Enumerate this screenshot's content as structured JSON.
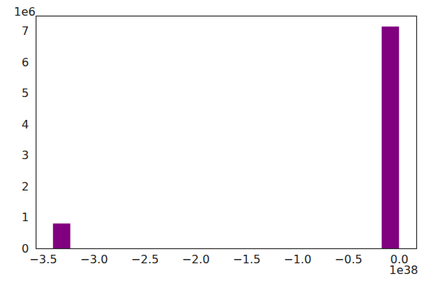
{
  "chart_data": {
    "type": "histogram",
    "bins": [
      -3.4,
      -3.23,
      -3.06,
      -2.89,
      -2.72,
      -2.55,
      -2.38,
      -2.21,
      -2.04,
      -1.87,
      -1.7,
      -1.53,
      -1.36,
      -1.19,
      -1.02,
      -0.85,
      -0.68,
      -0.51,
      -0.34,
      -0.17,
      0
    ],
    "values": [
      0.8,
      0,
      0,
      0,
      0,
      0,
      0,
      0,
      0,
      0,
      0,
      0,
      0,
      0,
      0,
      0,
      0,
      0,
      0,
      7.15
    ],
    "color": "#800080",
    "xlim": [
      -3.57,
      0.17
    ],
    "xticks": [
      {
        "value": -3.5,
        "label": "−3.5"
      },
      {
        "value": -3.0,
        "label": "−3.0"
      },
      {
        "value": -2.5,
        "label": "−2.5"
      },
      {
        "value": -2.0,
        "label": "−2.0"
      },
      {
        "value": -1.5,
        "label": "−1.5"
      },
      {
        "value": -1.0,
        "label": "−1.0"
      },
      {
        "value": -0.5,
        "label": "−0.5"
      },
      {
        "value": 0,
        "label": "0.0"
      }
    ],
    "ylim": [
      0,
      7.5
    ],
    "yticks": [
      0,
      1,
      2,
      3,
      4,
      5,
      6,
      7
    ],
    "grid": false,
    "annotations": [
      "1e6",
      "1e38"
    ]
  }
}
